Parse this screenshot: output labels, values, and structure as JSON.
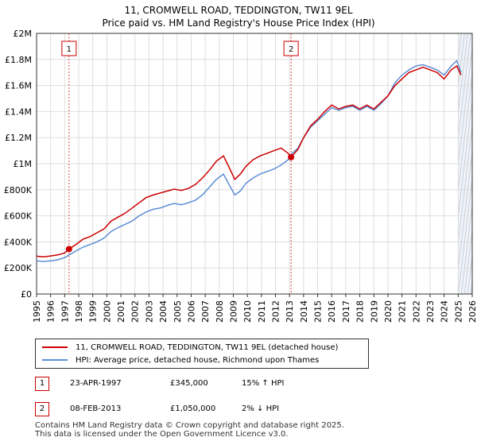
{
  "title": {
    "line1": "11, CROMWELL ROAD, TEDDINGTON, TW11 9EL",
    "line2": "Price paid vs. HM Land Registry's House Price Index (HPI)"
  },
  "legend": {
    "property": "11, CROMWELL ROAD, TEDDINGTON, TW11 9EL (detached house)",
    "hpi": "HPI: Average price, detached house, Richmond upon Thames"
  },
  "sales": [
    {
      "num": "1",
      "date": "23-APR-1997",
      "price": "£345,000",
      "hpi": "15% ↑ HPI"
    },
    {
      "num": "2",
      "date": "08-FEB-2013",
      "price": "£1,050,000",
      "hpi": "2% ↓ HPI"
    }
  ],
  "footer": {
    "line1": "Contains HM Land Registry data © Crown copyright and database right 2025.",
    "line2": "This data is licensed under the Open Government Licence v3.0."
  },
  "colors": {
    "property": "#cc0000",
    "hpi": "#5b8ed6",
    "grid": "#dddddd",
    "shade": "#eef2fa"
  },
  "chart_data": {
    "type": "line",
    "title": "11, CROMWELL ROAD, TEDDINGTON, TW11 9EL",
    "subtitle": "Price paid vs. HM Land Registry's House Price Index (HPI)",
    "xlabel": "",
    "ylabel": "",
    "xlim": [
      1995,
      2026
    ],
    "ylim": [
      0,
      2000000
    ],
    "grid": true,
    "legend_position": "bottom",
    "x_ticks": [
      1995,
      1996,
      1997,
      1998,
      1999,
      2000,
      2001,
      2002,
      2003,
      2004,
      2005,
      2006,
      2007,
      2008,
      2009,
      2010,
      2011,
      2012,
      2013,
      2014,
      2015,
      2016,
      2017,
      2018,
      2019,
      2020,
      2021,
      2022,
      2023,
      2024,
      2025,
      2026
    ],
    "y_ticks": [
      {
        "value": 0,
        "label": "£0"
      },
      {
        "value": 200000,
        "label": "£200K"
      },
      {
        "value": 400000,
        "label": "£400K"
      },
      {
        "value": 600000,
        "label": "£600K"
      },
      {
        "value": 800000,
        "label": "£800K"
      },
      {
        "value": 1000000,
        "label": "£1M"
      },
      {
        "value": 1200000,
        "label": "£1.2M"
      },
      {
        "value": 1400000,
        "label": "£1.4M"
      },
      {
        "value": 1600000,
        "label": "£1.6M"
      },
      {
        "value": 1800000,
        "label": "£1.8M"
      },
      {
        "value": 2000000,
        "label": "£2M"
      }
    ],
    "markers": [
      {
        "label": "1",
        "x": 1997.31,
        "y": 345000
      },
      {
        "label": "2",
        "x": 2013.11,
        "y": 1050000
      }
    ],
    "future_shading_from": 2025.0,
    "series": [
      {
        "name": "11, CROMWELL ROAD, TEDDINGTON, TW11 9EL (detached house)",
        "points": [
          [
            1995.0,
            290000
          ],
          [
            1995.5,
            285000
          ],
          [
            1996.0,
            292000
          ],
          [
            1996.5,
            300000
          ],
          [
            1997.0,
            315000
          ],
          [
            1997.31,
            345000
          ],
          [
            1997.8,
            380000
          ],
          [
            1998.3,
            420000
          ],
          [
            1998.8,
            440000
          ],
          [
            1999.3,
            470000
          ],
          [
            1999.8,
            500000
          ],
          [
            2000.3,
            560000
          ],
          [
            2000.8,
            590000
          ],
          [
            2001.3,
            620000
          ],
          [
            2001.8,
            660000
          ],
          [
            2002.3,
            700000
          ],
          [
            2002.8,
            740000
          ],
          [
            2003.3,
            760000
          ],
          [
            2003.8,
            775000
          ],
          [
            2004.3,
            790000
          ],
          [
            2004.8,
            805000
          ],
          [
            2005.3,
            795000
          ],
          [
            2005.8,
            810000
          ],
          [
            2006.3,
            840000
          ],
          [
            2006.8,
            890000
          ],
          [
            2007.3,
            950000
          ],
          [
            2007.8,
            1020000
          ],
          [
            2008.3,
            1060000
          ],
          [
            2008.8,
            950000
          ],
          [
            2009.1,
            880000
          ],
          [
            2009.5,
            920000
          ],
          [
            2009.9,
            980000
          ],
          [
            2010.4,
            1030000
          ],
          [
            2010.9,
            1060000
          ],
          [
            2011.4,
            1080000
          ],
          [
            2011.9,
            1100000
          ],
          [
            2012.4,
            1120000
          ],
          [
            2012.9,
            1080000
          ],
          [
            2013.11,
            1050000
          ],
          [
            2013.6,
            1110000
          ],
          [
            2014.0,
            1200000
          ],
          [
            2014.5,
            1290000
          ],
          [
            2015.0,
            1340000
          ],
          [
            2015.5,
            1400000
          ],
          [
            2016.0,
            1450000
          ],
          [
            2016.5,
            1420000
          ],
          [
            2017.0,
            1440000
          ],
          [
            2017.5,
            1450000
          ],
          [
            2018.0,
            1420000
          ],
          [
            2018.5,
            1450000
          ],
          [
            2019.0,
            1420000
          ],
          [
            2019.5,
            1470000
          ],
          [
            2020.0,
            1520000
          ],
          [
            2020.5,
            1600000
          ],
          [
            2021.0,
            1650000
          ],
          [
            2021.5,
            1700000
          ],
          [
            2022.0,
            1720000
          ],
          [
            2022.5,
            1740000
          ],
          [
            2023.0,
            1720000
          ],
          [
            2023.5,
            1700000
          ],
          [
            2024.0,
            1650000
          ],
          [
            2024.5,
            1720000
          ],
          [
            2024.9,
            1750000
          ],
          [
            2025.2,
            1680000
          ]
        ]
      },
      {
        "name": "HPI: Average price, detached house, Richmond upon Thames",
        "points": [
          [
            1995.0,
            255000
          ],
          [
            1995.5,
            250000
          ],
          [
            1996.0,
            255000
          ],
          [
            1996.5,
            262000
          ],
          [
            1997.0,
            280000
          ],
          [
            1997.31,
            300000
          ],
          [
            1997.8,
            330000
          ],
          [
            1998.3,
            360000
          ],
          [
            1998.8,
            380000
          ],
          [
            1999.3,
            400000
          ],
          [
            1999.8,
            430000
          ],
          [
            2000.3,
            480000
          ],
          [
            2000.8,
            510000
          ],
          [
            2001.3,
            535000
          ],
          [
            2001.8,
            560000
          ],
          [
            2002.3,
            600000
          ],
          [
            2002.8,
            630000
          ],
          [
            2003.3,
            650000
          ],
          [
            2003.8,
            660000
          ],
          [
            2004.3,
            680000
          ],
          [
            2004.8,
            695000
          ],
          [
            2005.3,
            685000
          ],
          [
            2005.8,
            700000
          ],
          [
            2006.3,
            720000
          ],
          [
            2006.8,
            760000
          ],
          [
            2007.3,
            820000
          ],
          [
            2007.8,
            880000
          ],
          [
            2008.3,
            920000
          ],
          [
            2008.8,
            820000
          ],
          [
            2009.1,
            760000
          ],
          [
            2009.5,
            790000
          ],
          [
            2009.9,
            850000
          ],
          [
            2010.4,
            890000
          ],
          [
            2010.9,
            920000
          ],
          [
            2011.4,
            940000
          ],
          [
            2011.9,
            960000
          ],
          [
            2012.4,
            990000
          ],
          [
            2012.9,
            1030000
          ],
          [
            2013.11,
            1070000
          ],
          [
            2013.6,
            1120000
          ],
          [
            2014.0,
            1200000
          ],
          [
            2014.5,
            1280000
          ],
          [
            2015.0,
            1330000
          ],
          [
            2015.5,
            1380000
          ],
          [
            2016.0,
            1430000
          ],
          [
            2016.5,
            1410000
          ],
          [
            2017.0,
            1430000
          ],
          [
            2017.5,
            1440000
          ],
          [
            2018.0,
            1410000
          ],
          [
            2018.5,
            1440000
          ],
          [
            2019.0,
            1410000
          ],
          [
            2019.5,
            1460000
          ],
          [
            2020.0,
            1520000
          ],
          [
            2020.5,
            1620000
          ],
          [
            2021.0,
            1680000
          ],
          [
            2021.5,
            1720000
          ],
          [
            2022.0,
            1750000
          ],
          [
            2022.5,
            1760000
          ],
          [
            2023.0,
            1740000
          ],
          [
            2023.5,
            1720000
          ],
          [
            2024.0,
            1680000
          ],
          [
            2024.5,
            1750000
          ],
          [
            2024.9,
            1790000
          ],
          [
            2025.2,
            1700000
          ]
        ]
      }
    ]
  }
}
